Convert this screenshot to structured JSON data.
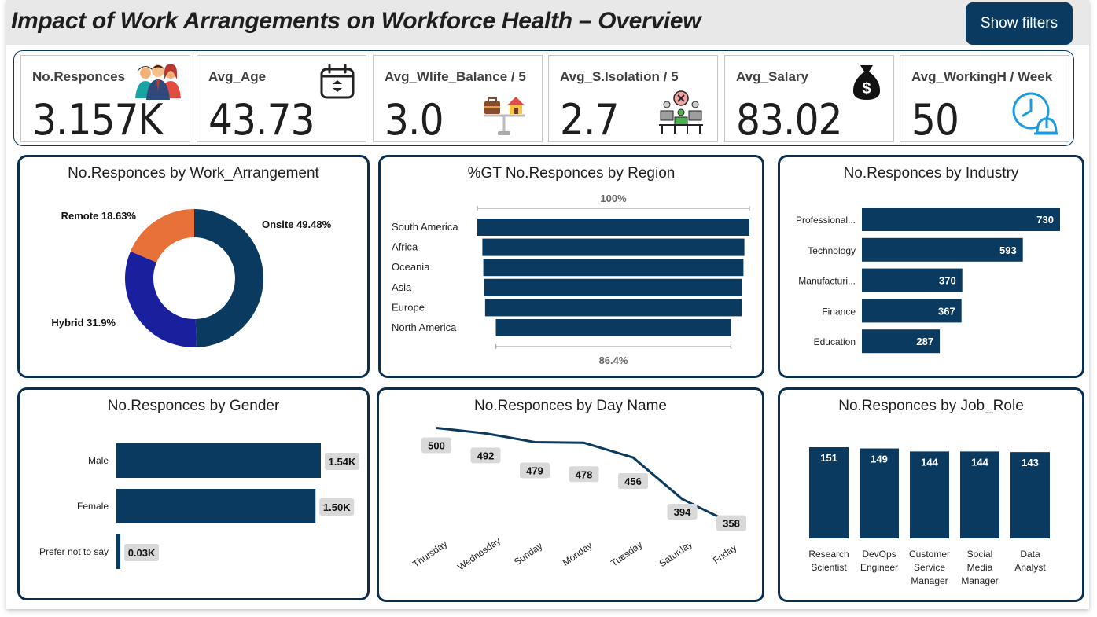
{
  "header": {
    "title": "Impact of Work Arrangements on Workforce Health – Overview",
    "filters_label": "Show filters"
  },
  "kpis": [
    {
      "label": "No.Responces",
      "value": "3.157K",
      "icon": "people-icon"
    },
    {
      "label": "Avg_Age",
      "value": "43.73",
      "icon": "calendar-icon"
    },
    {
      "label": "Avg_Wlife_Balance / 5",
      "value": "3.0",
      "icon": "work-life-balance-icon"
    },
    {
      "label": "Avg_S.Isolation / 5",
      "value": "2.7",
      "icon": "isolation-icon"
    },
    {
      "label": "Avg_Salary",
      "value": "83.02",
      "icon": "money-bag-icon"
    },
    {
      "label": "Avg_WorkingH / Week",
      "value": "50",
      "icon": "clock-helmet-icon"
    }
  ],
  "colors": {
    "primary": "#0a3a5f",
    "hybrid": "#1a1f9e",
    "remote": "#e8713a",
    "label_bg": "#d9d9d9"
  },
  "chart_data": [
    {
      "id": "work_arrangement",
      "type": "pie",
      "title": "No.Responces by Work_Arrangement",
      "categories": [
        "Onsite",
        "Hybrid",
        "Remote"
      ],
      "values": [
        49.48,
        31.9,
        18.63
      ],
      "labels": [
        "Onsite 49.48%",
        "Hybrid 31.9%",
        "Remote 18.63%"
      ]
    },
    {
      "id": "region",
      "type": "bar",
      "title": "%GT No.Responces by Region",
      "categories": [
        "South America",
        "Africa",
        "Oceania",
        "Asia",
        "Europe",
        "North America"
      ],
      "values": [
        100,
        96.3,
        95.6,
        94.8,
        94.3,
        86.4
      ],
      "top_label": "100%",
      "bottom_label": "86.4%"
    },
    {
      "id": "industry",
      "type": "bar",
      "title": "No.Responces by Industry",
      "categories": [
        "Professional...",
        "Technology",
        "Manufacturi...",
        "Finance",
        "Education"
      ],
      "values": [
        730,
        593,
        370,
        367,
        287
      ]
    },
    {
      "id": "gender",
      "type": "bar",
      "title": "No.Responces by Gender",
      "categories": [
        "Male",
        "Female",
        "Prefer not to say"
      ],
      "values": [
        1.54,
        1.5,
        0.03
      ],
      "labels": [
        "1.54K",
        "1.50K",
        "0.03K"
      ]
    },
    {
      "id": "day",
      "type": "line",
      "title": "No.Responces by Day Name",
      "categories": [
        "Thursday",
        "Wednesday",
        "Sunday",
        "Monday",
        "Tuesday",
        "Saturday",
        "Friday"
      ],
      "values": [
        500,
        492,
        479,
        478,
        456,
        394,
        358
      ]
    },
    {
      "id": "job_role",
      "type": "bar",
      "title": "No.Responces by Job_Role",
      "categories": [
        "Research Scientist",
        "DevOps Engineer",
        "Customer Service Manager",
        "Social Media Manager",
        "Data Analyst"
      ],
      "category_lines": [
        [
          "Research",
          "Scientist"
        ],
        [
          "DevOps",
          "Engineer"
        ],
        [
          "Customer",
          "Service",
          "Manager"
        ],
        [
          "Social",
          "Media",
          "Manager"
        ],
        [
          "Data",
          "Analyst"
        ]
      ],
      "values": [
        151,
        149,
        144,
        144,
        143
      ]
    }
  ]
}
